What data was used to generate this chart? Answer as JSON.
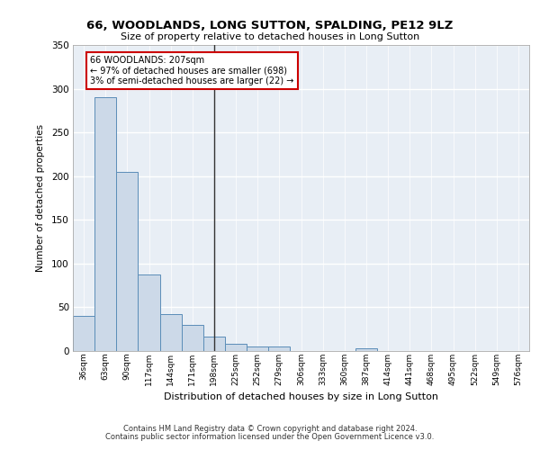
{
  "title": "66, WOODLANDS, LONG SUTTON, SPALDING, PE12 9LZ",
  "subtitle": "Size of property relative to detached houses in Long Sutton",
  "xlabel": "Distribution of detached houses by size in Long Sutton",
  "ylabel": "Number of detached properties",
  "categories": [
    "36sqm",
    "63sqm",
    "90sqm",
    "117sqm",
    "144sqm",
    "171sqm",
    "198sqm",
    "225sqm",
    "252sqm",
    "279sqm",
    "306sqm",
    "333sqm",
    "360sqm",
    "387sqm",
    "414sqm",
    "441sqm",
    "468sqm",
    "495sqm",
    "522sqm",
    "549sqm",
    "576sqm"
  ],
  "values": [
    40,
    290,
    205,
    87,
    42,
    30,
    16,
    8,
    5,
    5,
    0,
    0,
    0,
    3,
    0,
    0,
    0,
    0,
    0,
    0,
    0
  ],
  "bar_color": "#ccd9e8",
  "bar_edge_color": "#5b8db8",
  "vline_x_index": 6,
  "vline_color": "#333333",
  "annotation_text": "66 WOODLANDS: 207sqm\n← 97% of detached houses are smaller (698)\n3% of semi-detached houses are larger (22) →",
  "annotation_box_color": "#ffffff",
  "annotation_box_edge_color": "#cc0000",
  "bg_color": "#e8eef5",
  "grid_color": "#ffffff",
  "ylim": [
    0,
    350
  ],
  "yticks": [
    0,
    50,
    100,
    150,
    200,
    250,
    300,
    350
  ],
  "footer_line1": "Contains HM Land Registry data © Crown copyright and database right 2024.",
  "footer_line2": "Contains public sector information licensed under the Open Government Licence v3.0."
}
